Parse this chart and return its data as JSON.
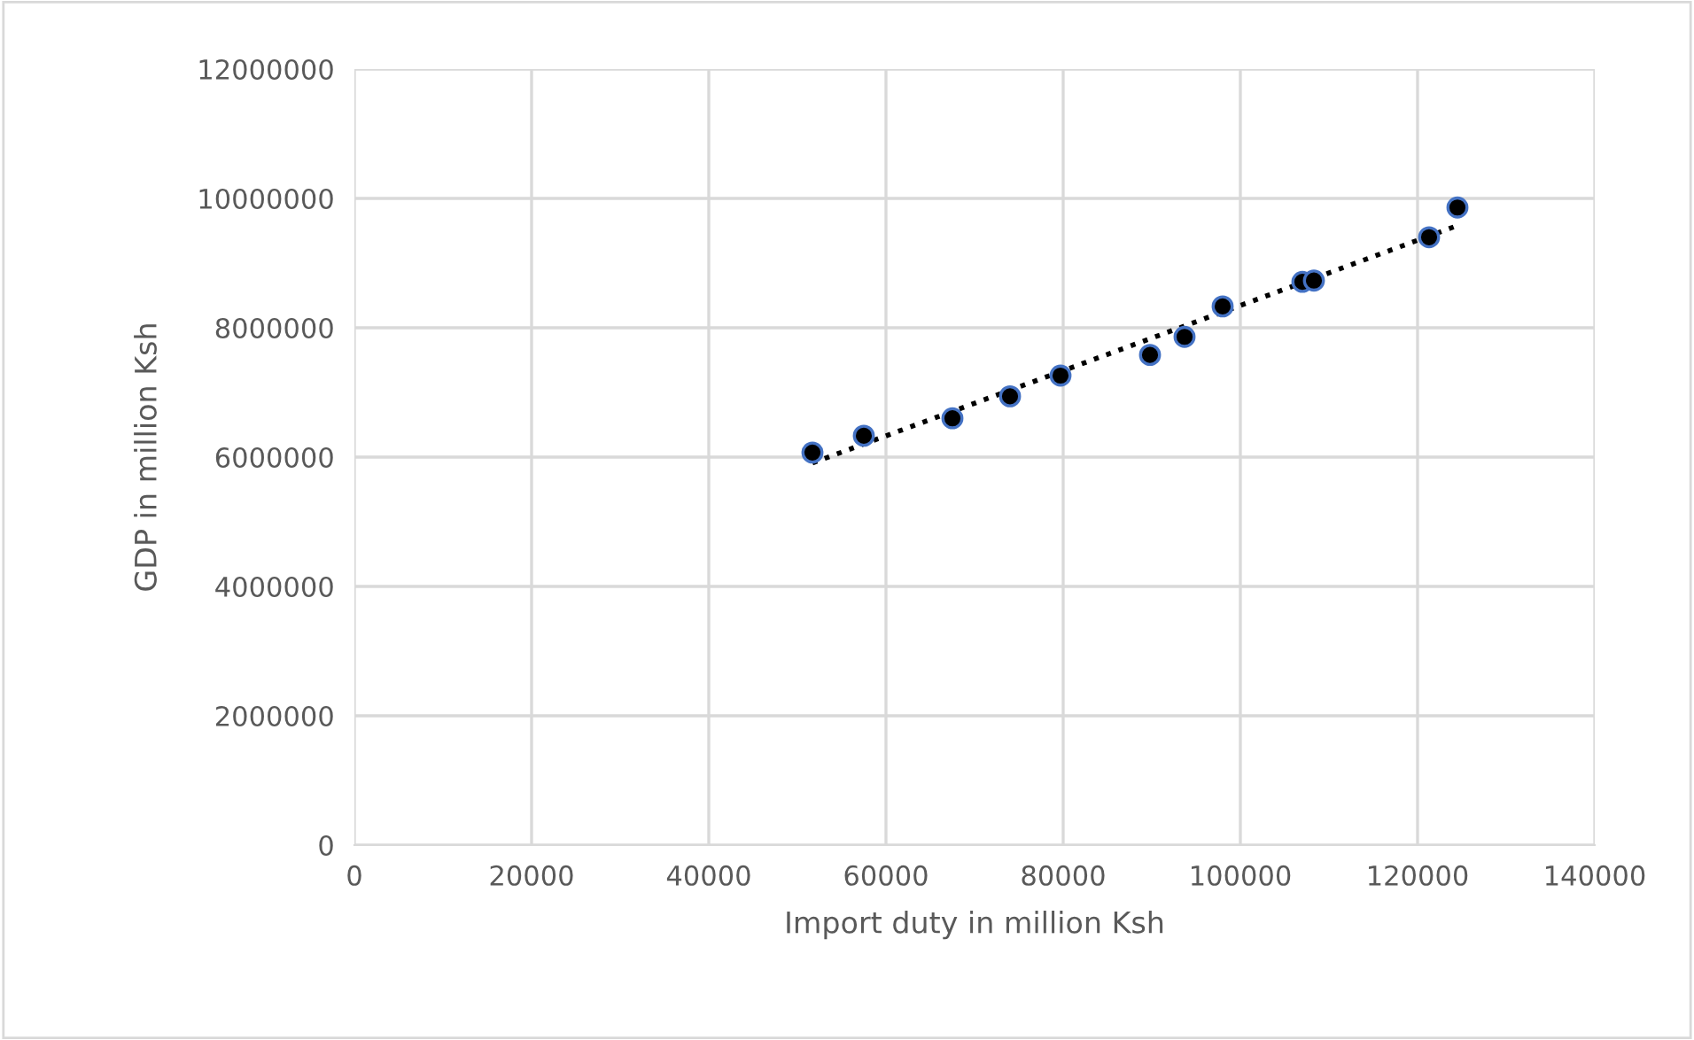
{
  "chart_data": {
    "type": "scatter",
    "xlabel": "Import duty in million Ksh",
    "ylabel": "GDP in million Ksh",
    "xlim": [
      0,
      140000
    ],
    "xticks": [
      0,
      20000,
      40000,
      60000,
      80000,
      100000,
      120000,
      140000
    ],
    "ylim": [
      0,
      12000000
    ],
    "yticks": [
      0,
      2000000,
      4000000,
      6000000,
      8000000,
      10000000,
      12000000
    ],
    "grid": true,
    "legend": false,
    "series": [
      {
        "color": "#000000",
        "marker": "circle",
        "x": [
          51700,
          57500,
          67500,
          74000,
          79700,
          89800,
          93700,
          98000,
          107000,
          108300,
          121300,
          124500
        ],
        "values": [
          6070000,
          6330000,
          6600000,
          6940000,
          7260000,
          7580000,
          7860000,
          8330000,
          8710000,
          8730000,
          9400000,
          9860000
        ]
      },
      {
        "type": "line",
        "color": "#000000",
        "line_style": "dotted",
        "marker": "none",
        "x": [
          51700,
          124500
        ],
        "values": [
          5910000,
          9580000
        ]
      }
    ]
  }
}
